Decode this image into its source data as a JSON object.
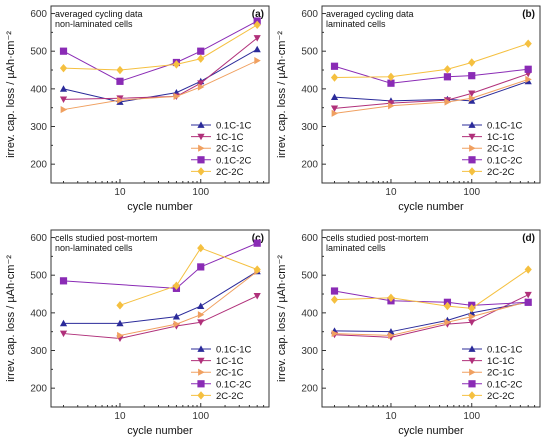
{
  "legend_order": [
    "0.1C-1C",
    "1C-1C",
    "2C-1C",
    "0.1C-2C",
    "2C-2C"
  ],
  "series_style": {
    "0.1C-1C": {
      "color": "#2b2b9a",
      "marker": "triangle-up"
    },
    "1C-1C": {
      "color": "#b0307a",
      "marker": "triangle-down"
    },
    "2C-1C": {
      "color": "#f0a060",
      "marker": "triangle-right"
    },
    "0.1C-2C": {
      "color": "#8a2bb5",
      "marker": "square"
    },
    "2C-2C": {
      "color": "#f5c040",
      "marker": "diamond"
    }
  },
  "chart_data": [
    {
      "type": "line",
      "panel": "(a)",
      "annotation": [
        "averaged cycling data",
        "non-laminated cells"
      ],
      "xlabel": "cycle number",
      "ylabel": "irrev. cap. loss / µAh·cm⁻²",
      "xscale": "log",
      "xlim": [
        1.4,
        700
      ],
      "ylim": [
        150,
        620
      ],
      "xticks": [
        10,
        100
      ],
      "yticks": [
        200,
        300,
        400,
        500,
        600
      ],
      "legend": "bottom-right",
      "x": [
        2,
        10,
        50,
        100,
        500
      ],
      "series": [
        {
          "name": "0.1C-1C",
          "values": [
            400,
            365,
            390,
            420,
            505
          ]
        },
        {
          "name": "1C-1C",
          "values": [
            372,
            375,
            380,
            415,
            535
          ]
        },
        {
          "name": "2C-1C",
          "values": [
            345,
            370,
            380,
            405,
            475
          ]
        },
        {
          "name": "0.1C-2C",
          "values": [
            500,
            420,
            470,
            500,
            580
          ]
        },
        {
          "name": "2C-2C",
          "values": [
            455,
            450,
            465,
            480,
            570
          ]
        }
      ]
    },
    {
      "type": "line",
      "panel": "(b)",
      "annotation": [
        "averaged cycling data",
        "laminated cells"
      ],
      "xlabel": "cycle number",
      "ylabel": "irrev. cap. loss / µAh·cm⁻²",
      "xscale": "log",
      "xlim": [
        1.4,
        700
      ],
      "ylim": [
        150,
        620
      ],
      "xticks": [
        10,
        100
      ],
      "yticks": [
        200,
        300,
        400,
        500,
        600
      ],
      "legend": "bottom-right",
      "x": [
        2,
        10,
        50,
        100,
        500
      ],
      "series": [
        {
          "name": "0.1C-1C",
          "values": [
            378,
            368,
            372,
            368,
            420
          ]
        },
        {
          "name": "1C-1C",
          "values": [
            348,
            362,
            370,
            388,
            440
          ]
        },
        {
          "name": "2C-1C",
          "values": [
            335,
            355,
            365,
            375,
            425
          ]
        },
        {
          "name": "0.1C-2C",
          "values": [
            460,
            415,
            432,
            435,
            452
          ]
        },
        {
          "name": "2C-2C",
          "values": [
            430,
            432,
            452,
            470,
            520
          ]
        }
      ]
    },
    {
      "type": "line",
      "panel": "(c)",
      "annotation": [
        "cells studied post-mortem",
        "non-laminated cells"
      ],
      "xlabel": "cycle number",
      "ylabel": "irrev. cap. loss / µAh·cm⁻²",
      "xscale": "log",
      "xlim": [
        1.4,
        700
      ],
      "ylim": [
        150,
        620
      ],
      "xticks": [
        10,
        100
      ],
      "yticks": [
        200,
        300,
        400,
        500,
        600
      ],
      "legend": "bottom-right",
      "x": [
        2,
        10,
        50,
        100,
        500
      ],
      "series": [
        {
          "name": "0.1C-1C",
          "values": [
            372,
            372,
            390,
            418,
            510
          ]
        },
        {
          "name": "1C-1C",
          "values": [
            345,
            332,
            365,
            375,
            445
          ]
        },
        {
          "name": "2C-1C",
          "values": [
            null,
            340,
            370,
            395,
            510
          ]
        },
        {
          "name": "0.1C-2C",
          "values": [
            485,
            null,
            465,
            522,
            585
          ]
        },
        {
          "name": "2C-2C",
          "values": [
            null,
            420,
            472,
            572,
            515
          ]
        }
      ]
    },
    {
      "type": "line",
      "panel": "(d)",
      "annotation": [
        "cells studied post-mortem",
        "laminated cells"
      ],
      "xlabel": "cycle number",
      "ylabel": "irrev. cap. loss / µAh·cm⁻²",
      "xscale": "log",
      "xlim": [
        1.4,
        700
      ],
      "ylim": [
        150,
        620
      ],
      "xticks": [
        10,
        100
      ],
      "yticks": [
        200,
        300,
        400,
        500,
        600
      ],
      "legend": "bottom-right",
      "x": [
        2,
        10,
        50,
        100,
        500
      ],
      "series": [
        {
          "name": "0.1C-1C",
          "values": [
            352,
            350,
            380,
            400,
            428
          ]
        },
        {
          "name": "1C-1C",
          "values": [
            342,
            335,
            370,
            375,
            448
          ]
        },
        {
          "name": "2C-1C",
          "values": [
            345,
            340,
            375,
            390,
            430
          ]
        },
        {
          "name": "0.1C-2C",
          "values": [
            458,
            432,
            428,
            420,
            428
          ]
        },
        {
          "name": "2C-2C",
          "values": [
            435,
            440,
            418,
            412,
            515
          ]
        }
      ]
    }
  ]
}
